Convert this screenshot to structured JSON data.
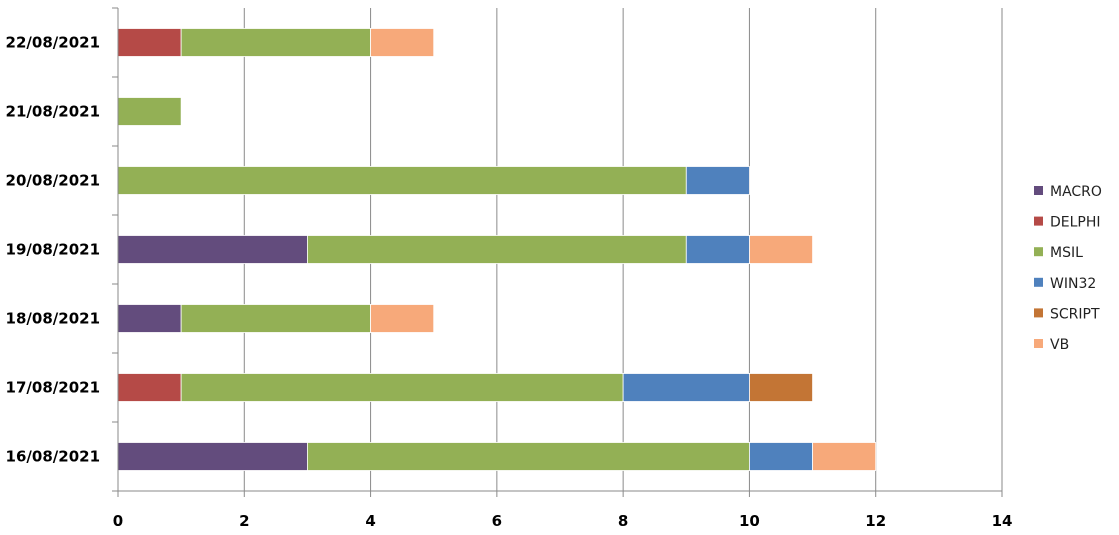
{
  "chart_data": {
    "type": "bar",
    "orientation": "horizontal",
    "stacked": true,
    "title": "",
    "xlabel": "",
    "ylabel": "",
    "categories": [
      "16/08/2021",
      "17/08/2021",
      "18/08/2021",
      "19/08/2021",
      "20/08/2021",
      "21/08/2021",
      "22/08/2021"
    ],
    "series": [
      {
        "name": "MACRO",
        "color": "#634c7d",
        "values": [
          3,
          0,
          1,
          3,
          0,
          0,
          0
        ]
      },
      {
        "name": "DELPHI",
        "color": "#b54a47",
        "values": [
          0,
          1,
          0,
          0,
          0,
          0,
          1
        ]
      },
      {
        "name": "MSIL",
        "color": "#93b055",
        "values": [
          7,
          7,
          3,
          6,
          9,
          1,
          3
        ]
      },
      {
        "name": "WIN32",
        "color": "#4f81bd",
        "values": [
          1,
          2,
          0,
          1,
          1,
          0,
          0
        ]
      },
      {
        "name": "SCRIPT",
        "color": "#c37535",
        "values": [
          0,
          1,
          0,
          0,
          0,
          0,
          0
        ]
      },
      {
        "name": "VB",
        "color": "#f7a97a",
        "values": [
          1,
          0,
          1,
          1,
          0,
          0,
          1
        ]
      }
    ],
    "xlim": [
      0,
      14
    ],
    "xticks": [
      0,
      2,
      4,
      6,
      8,
      10,
      12,
      14
    ],
    "grid": "vertical",
    "legend_position": "right"
  }
}
